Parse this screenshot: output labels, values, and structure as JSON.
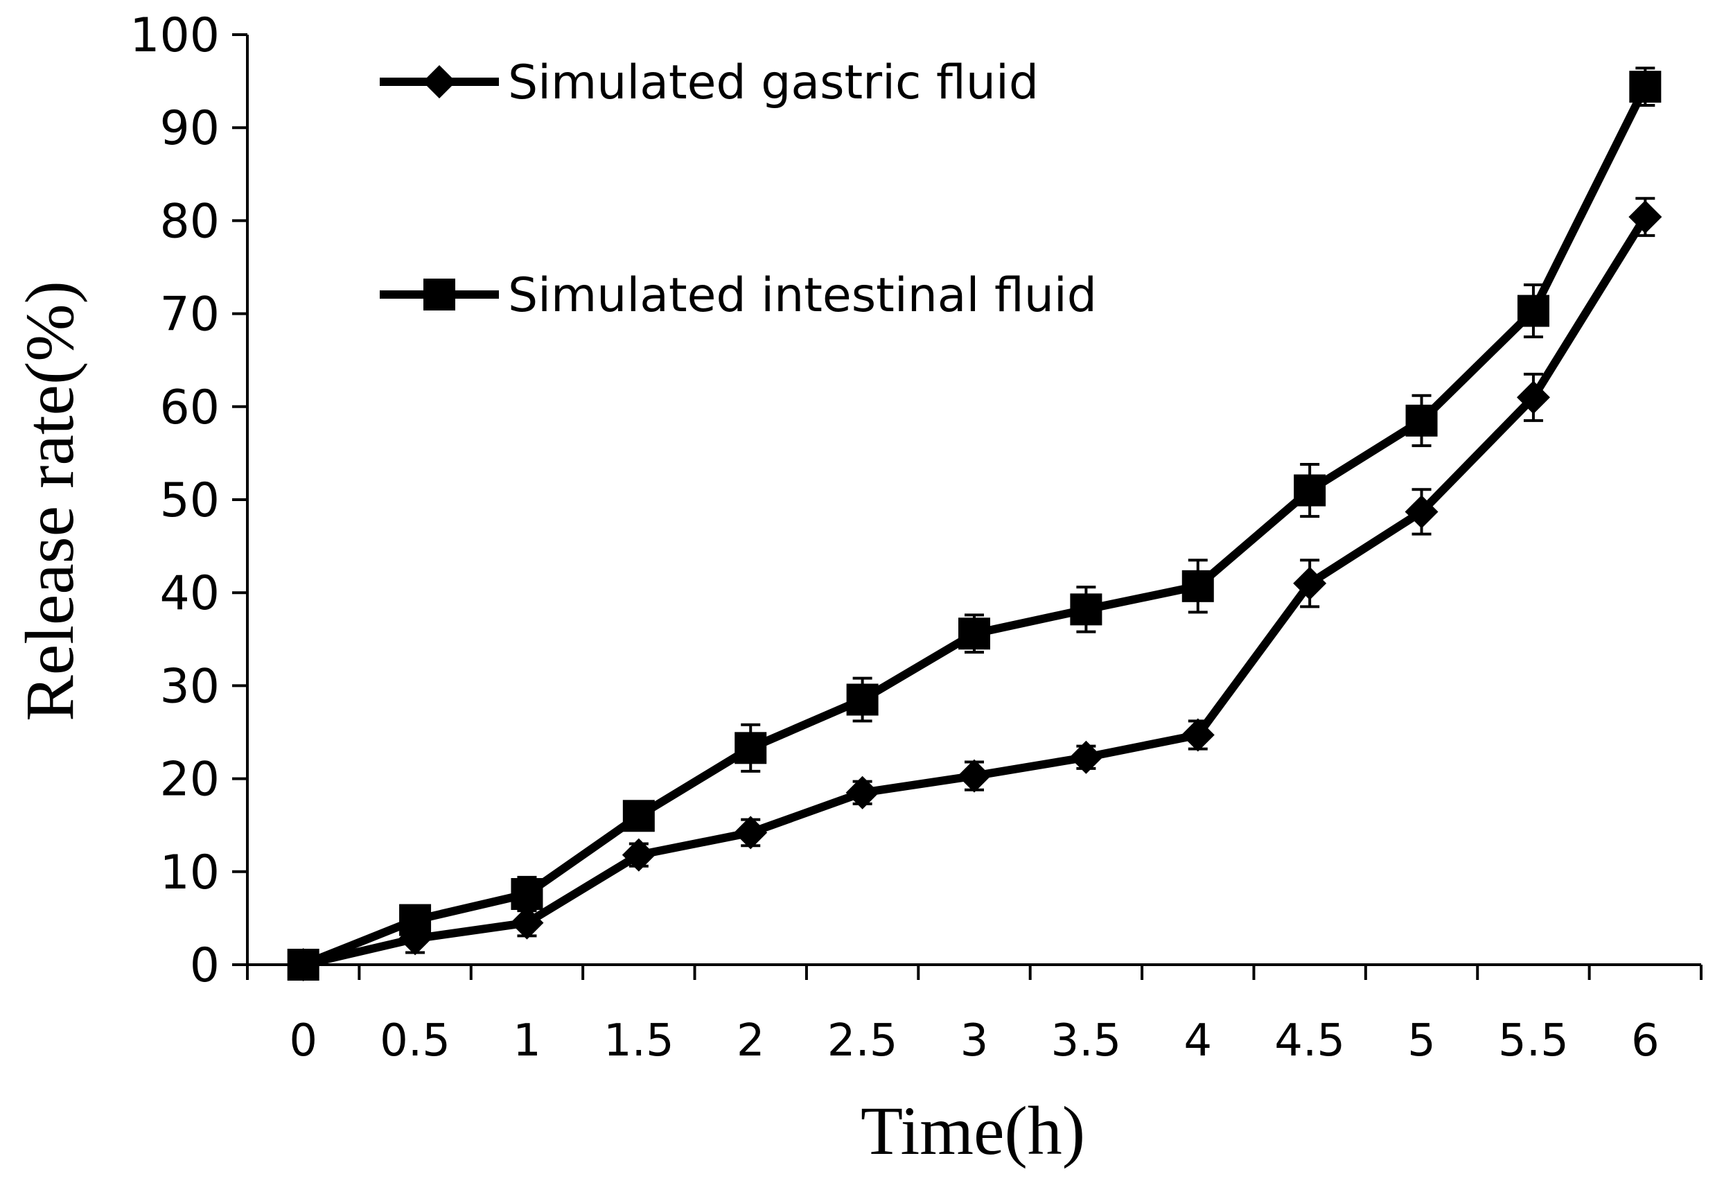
{
  "chart_data": {
    "type": "line",
    "xlabel": "Time(h)",
    "ylabel": "Release rate(%)",
    "ylim": [
      0,
      100
    ],
    "y_ticks": [
      "0",
      "10",
      "20",
      "30",
      "40",
      "50",
      "60",
      "70",
      "80",
      "90",
      "100"
    ],
    "categories": [
      "0",
      "0.5",
      "1",
      "1.5",
      "2",
      "2.5",
      "3",
      "3.5",
      "4",
      "4.5",
      "5",
      "5.5",
      "6"
    ],
    "legend_position": "top-left",
    "grid": false,
    "series": [
      {
        "name": "Simulated gastric fluid",
        "marker": "diamond",
        "values": [
          0,
          2.8,
          4.5,
          11.8,
          14.2,
          18.5,
          20.3,
          22.3,
          24.7,
          41.0,
          48.7,
          61.0,
          80.4
        ],
        "errors": [
          0,
          1.5,
          1.4,
          1.2,
          1.4,
          1.2,
          1.5,
          1.2,
          1.5,
          2.5,
          2.4,
          2.5,
          2.0
        ]
      },
      {
        "name": "Simulated intestinal fluid",
        "marker": "square",
        "values": [
          0,
          4.8,
          7.6,
          16.0,
          23.3,
          28.5,
          35.6,
          38.2,
          40.7,
          51.0,
          58.5,
          70.3,
          94.4
        ],
        "errors": [
          0,
          1.2,
          1.8,
          1.5,
          2.5,
          2.3,
          2.0,
          2.4,
          2.8,
          2.8,
          2.7,
          2.8,
          2.0
        ]
      }
    ]
  }
}
